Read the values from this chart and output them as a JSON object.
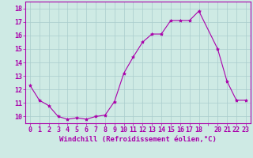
{
  "x": [
    0,
    1,
    2,
    3,
    4,
    5,
    6,
    7,
    8,
    9,
    10,
    11,
    12,
    13,
    14,
    15,
    16,
    17,
    18,
    20,
    21,
    22,
    23
  ],
  "y": [
    12.3,
    11.2,
    10.8,
    10.0,
    9.8,
    9.9,
    9.8,
    10.0,
    10.1,
    11.1,
    13.2,
    14.4,
    15.5,
    16.1,
    16.1,
    17.1,
    17.1,
    17.1,
    17.8,
    15.0,
    12.6,
    11.2,
    11.2
  ],
  "line_color": "#aa00aa",
  "marker": "*",
  "marker_size": 3,
  "bg_color": "#ceeae4",
  "grid_color": "#aacccc",
  "xlabel": "Windchill (Refroidissement éolien,°C)",
  "xlabel_fontsize": 6.5,
  "ylim": [
    9.5,
    18.5
  ],
  "xlim": [
    -0.5,
    23.5
  ],
  "tick_fontsize": 6
}
